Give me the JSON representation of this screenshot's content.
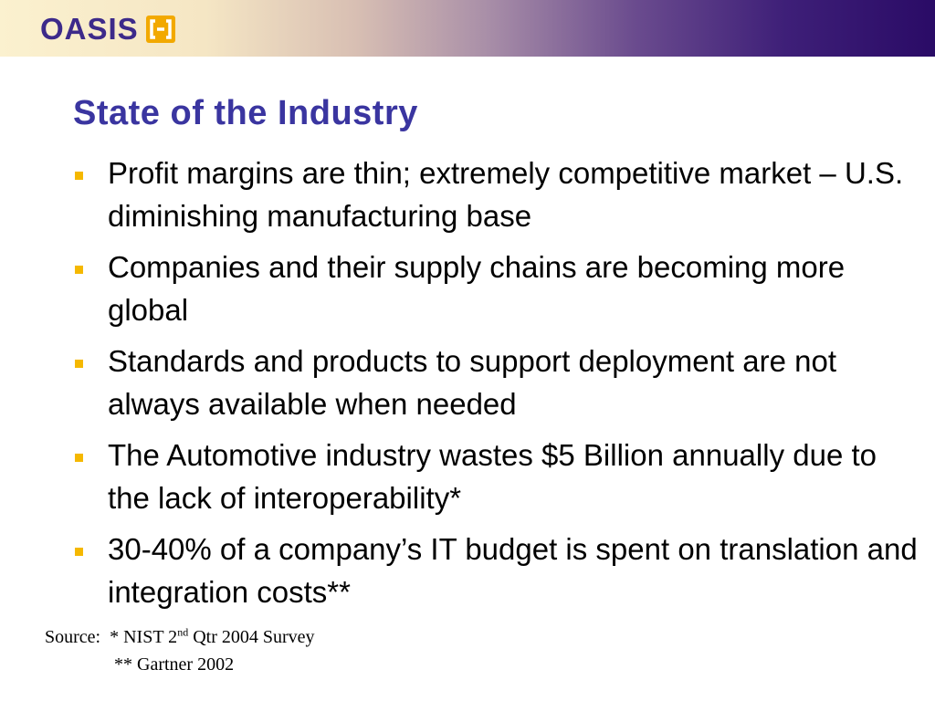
{
  "logo": {
    "text": "OASIS",
    "mark_icon": "oasis-bracket-logo-icon"
  },
  "slide": {
    "title": "State of the Industry",
    "bullets": [
      "Profit margins are thin; extremely competitive market – U.S. diminishing manufacturing base",
      "Companies and their supply chains are becoming more global",
      "Standards and products to support deployment are not always available when needed",
      "The Automotive industry wastes $5 Billion annually due to the lack of interoperability*",
      "30-40% of a company’s IT budget is spent on translation and integration costs**"
    ],
    "source": {
      "label": "Source:",
      "line1_prefix": "* NIST 2",
      "line1_sup": "nd",
      "line1_suffix": " Qtr 2004 Survey",
      "line2": "** Gartner 2002"
    }
  },
  "colors": {
    "title": "#3a35a0",
    "logo": "#3d2a8a",
    "bullet_marker": "#f5b800",
    "header_dark": "#2a0b66",
    "header_light": "#fbf1cf"
  }
}
